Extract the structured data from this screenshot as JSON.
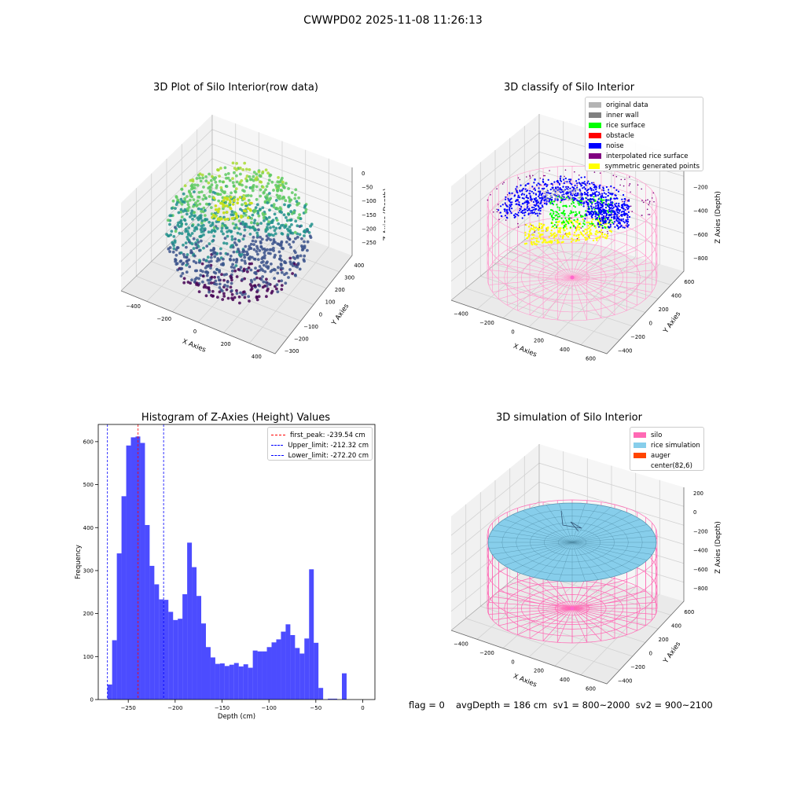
{
  "suptitle": "CWWPD02 2025-11-08 11:26:13",
  "panels": {
    "raw": {
      "title": "3D Plot of Silo Interior(row data)",
      "xlabel": "X Axies",
      "ylabel": "Y Axies",
      "zlabel": "Z Axies (Depth)",
      "xticks": [
        "−400",
        "−200",
        "0",
        "200",
        "400"
      ],
      "yticks": [
        "−300",
        "−200",
        "−100",
        "0",
        "100",
        "200",
        "300",
        "400"
      ],
      "zticks": [
        "0",
        "−50",
        "−100",
        "−150",
        "−200",
        "−250"
      ]
    },
    "classify": {
      "title": "3D classify of Silo Interior",
      "xlabel": "X Axies",
      "ylabel": "Y Axies",
      "zlabel": "Z Axies (Depth)",
      "xticks": [
        "−400",
        "−200",
        "0",
        "200",
        "400",
        "600"
      ],
      "yticks": [
        "−400",
        "−200",
        "0",
        "200",
        "400",
        "600"
      ],
      "zticks": [
        "0",
        "−200",
        "−400",
        "−600",
        "−800"
      ],
      "legend": [
        {
          "label": "original data",
          "color": "#b4b4b4"
        },
        {
          "label": "inner wall",
          "color": "#808080"
        },
        {
          "label": "rice surface",
          "color": "#00ff00"
        },
        {
          "label": "obstacle",
          "color": "#ff0000"
        },
        {
          "label": "noise",
          "color": "#0000ff"
        },
        {
          "label": "interpolated rice surface",
          "color": "#800080"
        },
        {
          "label": "symmetric generated points",
          "color": "#ffff00"
        }
      ]
    },
    "simulation": {
      "title": "3D simulation of Silo Interior",
      "xlabel": "X Axies",
      "ylabel": "Y Axies",
      "zlabel": "Z Axies (Depth)",
      "xticks": [
        "−400",
        "−200",
        "0",
        "200",
        "400",
        "600"
      ],
      "yticks": [
        "−400",
        "−200",
        "0",
        "200",
        "400",
        "600"
      ],
      "zticks": [
        "200",
        "0",
        "−200",
        "−400",
        "−600",
        "−800"
      ],
      "legend": [
        {
          "label": "silo",
          "color": "#ff69b4"
        },
        {
          "label": "rice simulation",
          "color": "#87ceeb"
        },
        {
          "label": "auger",
          "color": "#ff4500"
        },
        {
          "label": "center(82,6)",
          "color": "none"
        }
      ]
    }
  },
  "chart_data": [
    {
      "type": "bar",
      "title": "Histogram of Z-Axies (Height) Values",
      "xlabel": "Depth (cm)",
      "ylabel": "Frequency",
      "xlim": [
        -282,
        13
      ],
      "ylim": [
        0,
        640
      ],
      "bin_start": -272.2,
      "bin_width": 5.0,
      "bar_color": "#0000ff",
      "bar_opacity": 0.7,
      "xticks": [
        -250,
        -200,
        -150,
        -100,
        -50,
        0
      ],
      "yticks": [
        0,
        100,
        200,
        300,
        400,
        500,
        600
      ],
      "values": [
        35,
        138,
        340,
        473,
        591,
        610,
        612,
        597,
        406,
        311,
        268,
        233,
        232,
        204,
        185,
        188,
        245,
        365,
        308,
        241,
        177,
        122,
        98,
        83,
        84,
        78,
        81,
        85,
        77,
        82,
        74,
        114,
        112,
        112,
        122,
        133,
        140,
        158,
        175,
        150,
        120,
        107,
        142,
        303,
        132,
        27,
        0,
        2,
        2,
        0,
        61
      ],
      "vlines": [
        {
          "label": "first_peak: -239.54 cm",
          "x": -239.54,
          "color": "#ff0000"
        },
        {
          "label": "Upper_limit: -212.32 cm",
          "x": -212.32,
          "color": "#0000ff"
        },
        {
          "label": "Lower_limit: -272.20 cm",
          "x": -272.2,
          "color": "#0000ff"
        }
      ]
    }
  ],
  "footer": {
    "flag": "flag = 0",
    "avg": "avgDepth = 186 cm  sv1 = 800~2000  sv2 = 900~2100"
  }
}
